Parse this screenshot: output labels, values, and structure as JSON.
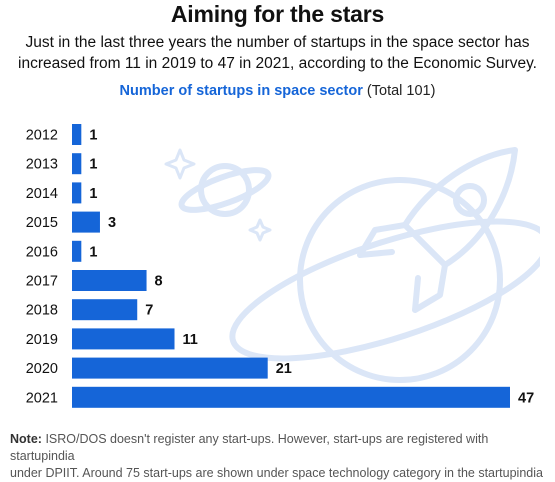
{
  "header": {
    "title": "Aiming for the stars",
    "subtitle_line1": "Just in the last three years the number of startups in the space sector has",
    "subtitle_line2": "increased from 11 in 2019 to 47 in 2021, according to the Economic Survey."
  },
  "chart_heading": {
    "main": "Number of startups in space sector",
    "total": "(Total 101)"
  },
  "note": {
    "label": "Note:",
    "line1": "ISRO/DOS doesn't register any start-ups. However, start-ups are registered with startupindia",
    "line2": "under DPIIT. Around 75 start-ups are shown under space technology category in the startupindia"
  },
  "colors": {
    "bar": "#1565d8",
    "title_accent": "#1565d8",
    "art": "#dbe6f7"
  },
  "chart_data": {
    "type": "bar",
    "orientation": "horizontal",
    "title": "Number of startups in space sector",
    "subtitle": "(Total 101)",
    "categories": [
      "2012",
      "2013",
      "2014",
      "2015",
      "2016",
      "2017",
      "2018",
      "2019",
      "2020",
      "2021"
    ],
    "values": [
      1,
      1,
      1,
      3,
      1,
      8,
      7,
      11,
      21,
      47
    ],
    "grid": false,
    "data_labels": true
  }
}
